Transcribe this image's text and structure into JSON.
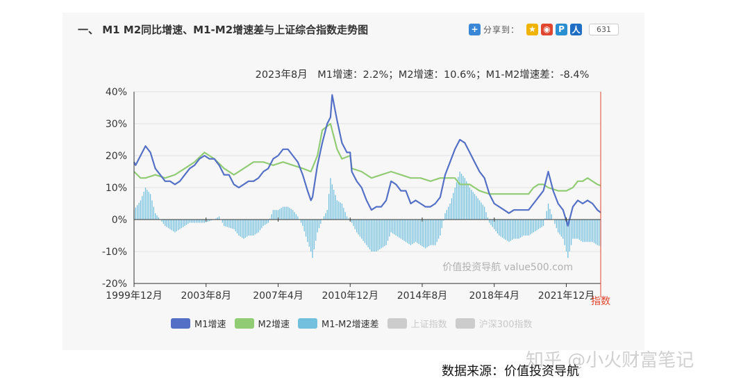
{
  "section_title": "一、 M1 M2同比增速、M1-M2增速差与上证综合指数走势图",
  "share": {
    "label": "分享到：",
    "count": "631",
    "icons": [
      "plus-icon",
      "qzone-icon",
      "weibo-icon",
      "tencent-weibo-icon",
      "renren-icon"
    ],
    "icon_colors": [
      "#3b87d7",
      "#f0b400",
      "#e0452e",
      "#2a8fd0",
      "#1e6fc4"
    ]
  },
  "watermark_site": "价值投资导航 value500.com",
  "watermark_zhihu": "知乎 @小火财富笔记",
  "source_text": "数据来源：价值投资导航",
  "chart_data": {
    "type": "line",
    "title": "2023年8月　M1增速：2.2%；M2增速：10.6%；M1-M2增速差：-8.4%",
    "ylim": [
      -20,
      40
    ],
    "yticks": [
      "40%",
      "30%",
      "20%",
      "10%",
      "0%",
      "-10%",
      "-20%"
    ],
    "ytick_values": [
      40,
      30,
      20,
      10,
      0,
      -10,
      -20
    ],
    "x_range": [
      1999.917,
      2023.667
    ],
    "xticks": [
      "1999年12月",
      "2003年8月",
      "2007年4月",
      "2010年12月",
      "2014年8月",
      "2018年4月",
      "2021年12月"
    ],
    "xtick_values": [
      1999.917,
      2003.583,
      2007.25,
      2010.917,
      2014.583,
      2018.25,
      2021.917
    ],
    "right_axis_label": "指数",
    "grid": true,
    "legend_position": "bottom",
    "series": [
      {
        "name": "M1增速",
        "color": "#5470c6",
        "points": [
          [
            1999.917,
            18
          ],
          [
            2000.0,
            17
          ],
          [
            2000.25,
            20
          ],
          [
            2000.5,
            23
          ],
          [
            2000.75,
            21
          ],
          [
            2001.0,
            16
          ],
          [
            2001.25,
            14
          ],
          [
            2001.5,
            12
          ],
          [
            2001.75,
            12
          ],
          [
            2002.0,
            11
          ],
          [
            2002.25,
            12
          ],
          [
            2002.5,
            14
          ],
          [
            2002.75,
            16
          ],
          [
            2003.0,
            17
          ],
          [
            2003.25,
            19
          ],
          [
            2003.5,
            20
          ],
          [
            2003.75,
            19
          ],
          [
            2004.0,
            19
          ],
          [
            2004.25,
            17
          ],
          [
            2004.5,
            14
          ],
          [
            2004.75,
            14
          ],
          [
            2005.0,
            11
          ],
          [
            2005.25,
            10
          ],
          [
            2005.5,
            11
          ],
          [
            2005.75,
            12
          ],
          [
            2006.0,
            12
          ],
          [
            2006.25,
            13
          ],
          [
            2006.5,
            15
          ],
          [
            2006.75,
            16
          ],
          [
            2007.0,
            19
          ],
          [
            2007.25,
            20
          ],
          [
            2007.5,
            22
          ],
          [
            2007.75,
            22
          ],
          [
            2008.0,
            20
          ],
          [
            2008.25,
            18
          ],
          [
            2008.5,
            14
          ],
          [
            2008.75,
            9
          ],
          [
            2008.917,
            6
          ],
          [
            2009.0,
            7
          ],
          [
            2009.25,
            17
          ],
          [
            2009.5,
            24
          ],
          [
            2009.75,
            30
          ],
          [
            2009.917,
            32
          ],
          [
            2010.0,
            39
          ],
          [
            2010.25,
            31
          ],
          [
            2010.5,
            24
          ],
          [
            2010.75,
            21
          ],
          [
            2010.917,
            21
          ],
          [
            2011.0,
            15
          ],
          [
            2011.25,
            12
          ],
          [
            2011.5,
            10
          ],
          [
            2011.75,
            6
          ],
          [
            2012.0,
            3
          ],
          [
            2012.25,
            4
          ],
          [
            2012.5,
            4
          ],
          [
            2012.75,
            6
          ],
          [
            2013.0,
            12
          ],
          [
            2013.25,
            11
          ],
          [
            2013.5,
            9
          ],
          [
            2013.75,
            9
          ],
          [
            2014.0,
            5
          ],
          [
            2014.25,
            6
          ],
          [
            2014.5,
            5
          ],
          [
            2014.75,
            4
          ],
          [
            2015.0,
            4
          ],
          [
            2015.25,
            5
          ],
          [
            2015.5,
            7
          ],
          [
            2015.75,
            14
          ],
          [
            2016.0,
            18
          ],
          [
            2016.25,
            22
          ],
          [
            2016.5,
            25
          ],
          [
            2016.75,
            24
          ],
          [
            2017.0,
            21
          ],
          [
            2017.25,
            18
          ],
          [
            2017.5,
            15
          ],
          [
            2017.75,
            13
          ],
          [
            2018.0,
            8
          ],
          [
            2018.25,
            5
          ],
          [
            2018.5,
            4
          ],
          [
            2018.75,
            3
          ],
          [
            2019.0,
            2
          ],
          [
            2019.25,
            3
          ],
          [
            2019.5,
            3
          ],
          [
            2019.75,
            3
          ],
          [
            2020.0,
            3
          ],
          [
            2020.25,
            5
          ],
          [
            2020.5,
            7
          ],
          [
            2020.75,
            9
          ],
          [
            2021.0,
            15
          ],
          [
            2021.25,
            9
          ],
          [
            2021.5,
            5
          ],
          [
            2021.75,
            3
          ],
          [
            2022.0,
            -2
          ],
          [
            2022.25,
            4
          ],
          [
            2022.5,
            6
          ],
          [
            2022.75,
            5
          ],
          [
            2023.0,
            6
          ],
          [
            2023.25,
            5
          ],
          [
            2023.5,
            3
          ],
          [
            2023.667,
            2.2
          ]
        ]
      },
      {
        "name": "M2增速",
        "color": "#91cc75",
        "points": [
          [
            1999.917,
            15
          ],
          [
            2000.25,
            13
          ],
          [
            2000.5,
            13
          ],
          [
            2001.0,
            14
          ],
          [
            2001.5,
            13
          ],
          [
            2002.0,
            14
          ],
          [
            2002.5,
            16
          ],
          [
            2003.0,
            18
          ],
          [
            2003.5,
            21
          ],
          [
            2003.75,
            20
          ],
          [
            2004.0,
            19
          ],
          [
            2004.5,
            16
          ],
          [
            2005.0,
            14
          ],
          [
            2005.5,
            16
          ],
          [
            2006.0,
            18
          ],
          [
            2006.5,
            18
          ],
          [
            2007.0,
            17
          ],
          [
            2007.5,
            18
          ],
          [
            2008.0,
            17
          ],
          [
            2008.5,
            16
          ],
          [
            2008.917,
            15
          ],
          [
            2009.25,
            20
          ],
          [
            2009.5,
            28
          ],
          [
            2009.917,
            30
          ],
          [
            2010.25,
            22
          ],
          [
            2010.5,
            19
          ],
          [
            2010.917,
            20
          ],
          [
            2011.0,
            16
          ],
          [
            2011.5,
            15
          ],
          [
            2012.0,
            13
          ],
          [
            2012.5,
            14
          ],
          [
            2013.0,
            15
          ],
          [
            2013.5,
            14
          ],
          [
            2014.0,
            13
          ],
          [
            2014.5,
            13
          ],
          [
            2015.0,
            12
          ],
          [
            2015.5,
            13
          ],
          [
            2015.917,
            13
          ],
          [
            2016.25,
            13
          ],
          [
            2016.5,
            11
          ],
          [
            2017.0,
            11
          ],
          [
            2017.5,
            9
          ],
          [
            2018.0,
            8
          ],
          [
            2018.5,
            8
          ],
          [
            2019.0,
            8
          ],
          [
            2019.5,
            8
          ],
          [
            2020.0,
            8
          ],
          [
            2020.25,
            10
          ],
          [
            2020.5,
            11
          ],
          [
            2020.75,
            11
          ],
          [
            2021.0,
            10
          ],
          [
            2021.5,
            9
          ],
          [
            2021.917,
            9
          ],
          [
            2022.25,
            10
          ],
          [
            2022.5,
            12
          ],
          [
            2022.75,
            12
          ],
          [
            2023.0,
            13
          ],
          [
            2023.25,
            12
          ],
          [
            2023.5,
            11
          ],
          [
            2023.667,
            10.6
          ]
        ]
      },
      {
        "name": "M1-M2增速差",
        "color": "#73c0de",
        "points": [
          [
            1999.917,
            3
          ],
          [
            2000.25,
            6
          ],
          [
            2000.5,
            10
          ],
          [
            2000.75,
            8
          ],
          [
            2001.0,
            2
          ],
          [
            2001.25,
            0
          ],
          [
            2001.5,
            -2
          ],
          [
            2001.75,
            -3
          ],
          [
            2002.0,
            -4
          ],
          [
            2002.25,
            -3
          ],
          [
            2002.5,
            -2
          ],
          [
            2002.75,
            -1
          ],
          [
            2003.0,
            -1
          ],
          [
            2003.5,
            -1
          ],
          [
            2004.0,
            0
          ],
          [
            2004.25,
            1
          ],
          [
            2004.5,
            -2
          ],
          [
            2005.0,
            -3
          ],
          [
            2005.25,
            -5
          ],
          [
            2005.5,
            -6
          ],
          [
            2005.75,
            -5
          ],
          [
            2006.0,
            -5
          ],
          [
            2006.25,
            -4
          ],
          [
            2006.5,
            -2
          ],
          [
            2006.75,
            -1
          ],
          [
            2007.0,
            3
          ],
          [
            2007.25,
            3
          ],
          [
            2007.5,
            4
          ],
          [
            2007.75,
            4
          ],
          [
            2008.0,
            3
          ],
          [
            2008.25,
            1
          ],
          [
            2008.5,
            -2
          ],
          [
            2008.75,
            -7
          ],
          [
            2008.917,
            -10
          ],
          [
            2009.0,
            -12
          ],
          [
            2009.25,
            -4
          ],
          [
            2009.5,
            0
          ],
          [
            2009.75,
            3
          ],
          [
            2009.917,
            13
          ],
          [
            2010.0,
            11
          ],
          [
            2010.25,
            6
          ],
          [
            2010.5,
            5
          ],
          [
            2010.75,
            1
          ],
          [
            2011.0,
            -1
          ],
          [
            2011.25,
            -4
          ],
          [
            2011.5,
            -6
          ],
          [
            2011.75,
            -8
          ],
          [
            2012.0,
            -10
          ],
          [
            2012.25,
            -10
          ],
          [
            2012.5,
            -9
          ],
          [
            2012.75,
            -8
          ],
          [
            2013.0,
            -4
          ],
          [
            2013.25,
            -5
          ],
          [
            2013.5,
            -6
          ],
          [
            2013.75,
            -7
          ],
          [
            2014.0,
            -8
          ],
          [
            2014.25,
            -7
          ],
          [
            2014.5,
            -8
          ],
          [
            2014.75,
            -9
          ],
          [
            2015.0,
            -8
          ],
          [
            2015.25,
            -8
          ],
          [
            2015.5,
            -5
          ],
          [
            2015.75,
            2
          ],
          [
            2016.0,
            5
          ],
          [
            2016.25,
            10
          ],
          [
            2016.5,
            15
          ],
          [
            2016.75,
            13
          ],
          [
            2017.0,
            10
          ],
          [
            2017.25,
            8
          ],
          [
            2017.5,
            6
          ],
          [
            2017.75,
            4
          ],
          [
            2018.0,
            -1
          ],
          [
            2018.25,
            -3
          ],
          [
            2018.5,
            -5
          ],
          [
            2018.75,
            -6
          ],
          [
            2019.0,
            -7
          ],
          [
            2019.25,
            -6
          ],
          [
            2019.5,
            -6
          ],
          [
            2019.75,
            -5
          ],
          [
            2020.0,
            -5
          ],
          [
            2020.25,
            -4
          ],
          [
            2020.5,
            -3
          ],
          [
            2020.75,
            -2
          ],
          [
            2021.0,
            5
          ],
          [
            2021.25,
            0
          ],
          [
            2021.5,
            -4
          ],
          [
            2021.75,
            -6
          ],
          [
            2022.0,
            -12
          ],
          [
            2022.25,
            -6
          ],
          [
            2022.5,
            -6
          ],
          [
            2022.75,
            -7
          ],
          [
            2023.0,
            -7
          ],
          [
            2023.25,
            -7
          ],
          [
            2023.5,
            -8
          ],
          [
            2023.667,
            -8.4
          ]
        ]
      }
    ],
    "legend_disabled": [
      {
        "name": "上证指数",
        "color": "#cccccc"
      },
      {
        "name": "沪深300指数",
        "color": "#cccccc"
      }
    ]
  }
}
